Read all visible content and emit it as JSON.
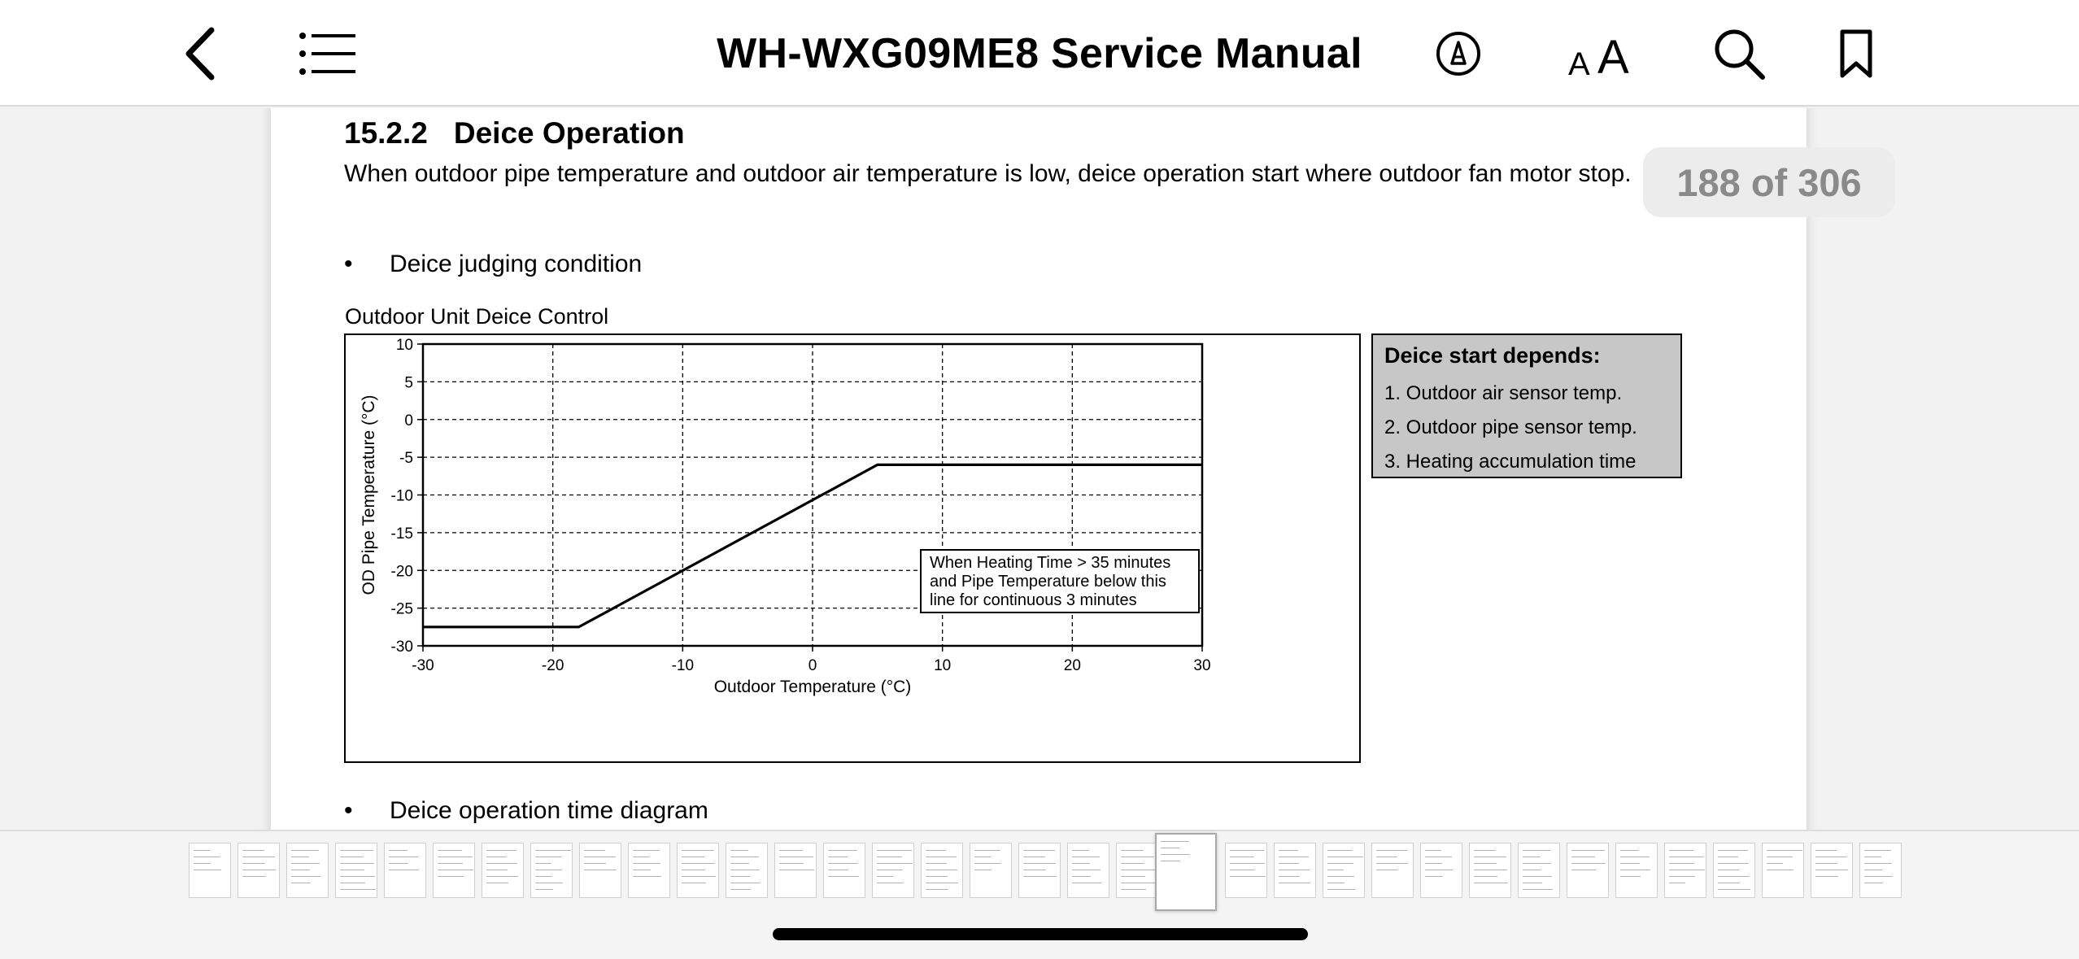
{
  "topbar": {
    "title": "WH-WXG09ME8 Service Manual",
    "buttons": [
      "back-icon",
      "list-icon",
      "markup-icon",
      "text-size-icon",
      "search-icon",
      "bookmark-icon"
    ],
    "text_size_glyph": "AA"
  },
  "page": {
    "section_number": "15.2.2",
    "section_title": "Deice Operation",
    "paragraph": "When outdoor pipe temperature and outdoor air temperature is low, deice operation start where outdoor fan motor stop.",
    "bullet_1": "Deice judging condition",
    "bullet_2": "Deice operation time diagram",
    "chart_caption": "Outdoor Unit Deice Control",
    "legend": {
      "title": "Deice start depends:",
      "items": [
        "1. Outdoor air sensor temp.",
        "2. Outdoor pipe sensor temp.",
        "3. Heating accumulation time"
      ]
    }
  },
  "page_indicator": "188 of 306",
  "thumbnails": {
    "count": 35,
    "active_index": 20
  },
  "colors": {
    "legend_bg": "#c7c7c7",
    "page_indicator_text": "#8a8a8a"
  },
  "chart_data": {
    "type": "line",
    "title": "Outdoor Unit Deice Control",
    "xlabel": "Outdoor Temperature (°C)",
    "ylabel": "OD Pipe Temperature (°C)",
    "xlim": [
      -30,
      30
    ],
    "ylim": [
      -30,
      10
    ],
    "xticks": [
      -30,
      -20,
      -10,
      0,
      10,
      20,
      30
    ],
    "yticks": [
      10,
      5,
      0,
      -5,
      -10,
      -15,
      -20,
      -25,
      -30
    ],
    "grid": true,
    "series": [
      {
        "x": [
          -30,
          -18,
          5,
          30
        ],
        "y": [
          -27.5,
          -27.5,
          -6,
          -6
        ]
      }
    ],
    "annotation": [
      "When Heating Time > 35 minutes",
      "and Pipe Temperature below this",
      "line for continuous 3 minutes"
    ]
  }
}
